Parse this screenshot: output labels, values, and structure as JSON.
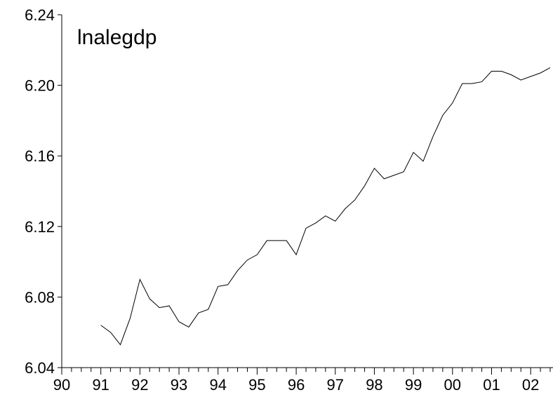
{
  "chart_data": {
    "type": "line",
    "title": "lnalegdp",
    "categories": [
      "90",
      null,
      null,
      null,
      "91",
      null,
      null,
      null,
      "92",
      null,
      null,
      null,
      "93",
      null,
      null,
      null,
      "94",
      null,
      null,
      null,
      "95",
      null,
      null,
      null,
      "96",
      null,
      null,
      null,
      "97",
      null,
      null,
      null,
      "98",
      null,
      null,
      null,
      "99",
      null,
      null,
      null,
      "00",
      null,
      null,
      null,
      "01",
      null,
      null,
      null,
      "02",
      null,
      null
    ],
    "series": [
      {
        "name": "lnalegdp",
        "color": "#000000",
        "values": [
          null,
          null,
          null,
          null,
          6.064,
          6.06,
          6.053,
          6.068,
          6.09,
          6.079,
          6.074,
          6.075,
          6.066,
          6.063,
          6.071,
          6.073,
          6.086,
          6.087,
          6.095,
          6.101,
          6.104,
          6.112,
          6.112,
          6.112,
          6.104,
          6.119,
          6.122,
          6.126,
          6.123,
          6.13,
          6.135,
          6.143,
          6.153,
          6.147,
          6.149,
          6.151,
          6.162,
          6.157,
          6.171,
          6.183,
          6.19,
          6.201,
          6.201,
          6.202,
          6.208,
          6.208,
          6.206,
          6.203,
          6.205,
          6.207,
          6.21
        ]
      }
    ],
    "ylim": [
      6.04,
      6.24
    ],
    "yticks": [
      6.04,
      6.08,
      6.12,
      6.16,
      {
        "value": 6.2,
        "label": "6.20"
      },
      6.24
    ],
    "grid": false
  }
}
